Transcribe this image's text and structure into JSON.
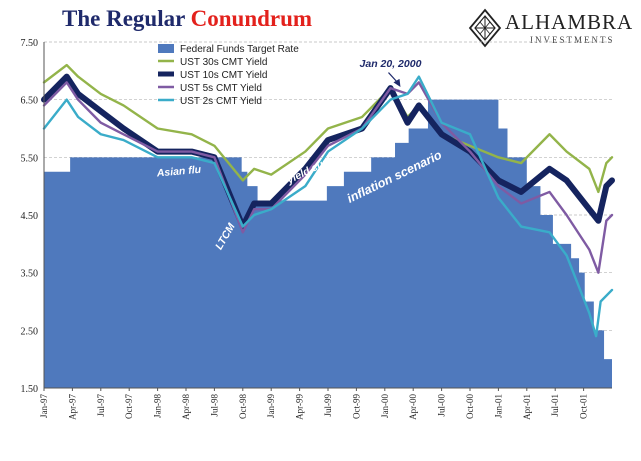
{
  "title": {
    "part1": "The Regular",
    "part2": "Conundrum"
  },
  "logo": {
    "brand": "ALHAMBRA",
    "sub": "INVESTMENTS"
  },
  "chart_data": {
    "type": "area",
    "ylim": [
      1.5,
      7.5
    ],
    "yticks": [
      "7.50",
      "6.50",
      "5.50",
      "4.50",
      "3.50",
      "2.50",
      "1.50"
    ],
    "xticks": [
      "Jan-97",
      "Apr-97",
      "Jul-97",
      "Oct-97",
      "Jan-98",
      "Apr-98",
      "Jul-98",
      "Oct-98",
      "Jan-99",
      "Apr-99",
      "Jul-99",
      "Oct-99",
      "Jan-00",
      "Apr-00",
      "Jul-00",
      "Oct-00",
      "Jan-01",
      "Apr-01",
      "Jul-01",
      "Oct-01"
    ],
    "grid": true,
    "legend": "top-left",
    "series": [
      {
        "name": "Federal Funds Target Rate",
        "kind": "step-area",
        "color": "#4f79bd",
        "x": [
          1997.0,
          1997.23,
          1998.74,
          1998.79,
          1998.88,
          1999.49,
          1999.64,
          1999.88,
          2000.09,
          2000.21,
          2000.38,
          2001.0,
          2001.08,
          2001.25,
          2001.37,
          2001.48,
          2001.64,
          2001.71,
          2001.76,
          2001.84,
          2001.93,
          2002.0
        ],
        "values": [
          5.25,
          5.5,
          5.25,
          5.0,
          4.75,
          5.0,
          5.25,
          5.5,
          5.75,
          6.0,
          6.5,
          6.0,
          5.5,
          5.0,
          4.5,
          4.0,
          3.75,
          3.5,
          3.0,
          2.5,
          2.0,
          1.75
        ]
      },
      {
        "name": "UST 30s CMT Yield",
        "color": "#93b44a",
        "x": [
          1997.0,
          1997.2,
          1997.3,
          1997.5,
          1997.7,
          1998.0,
          1998.3,
          1998.5,
          1998.75,
          1998.85,
          1999.0,
          1999.3,
          1999.5,
          1999.8,
          2000.05,
          2000.2,
          2000.3,
          2000.5,
          2000.75,
          2001.0,
          2001.2,
          2001.45,
          2001.6,
          2001.8,
          2001.88,
          2001.95,
          2002.0
        ],
        "values": [
          6.8,
          7.1,
          6.9,
          6.6,
          6.4,
          6.0,
          5.9,
          5.7,
          5.1,
          5.3,
          5.2,
          5.6,
          6.0,
          6.2,
          6.7,
          6.2,
          6.4,
          5.9,
          5.7,
          5.5,
          5.4,
          5.9,
          5.6,
          5.3,
          4.9,
          5.4,
          5.5
        ]
      },
      {
        "name": "UST 10s CMT Yield",
        "color": "#15245f",
        "x": [
          1997.0,
          1997.2,
          1997.3,
          1997.5,
          1997.7,
          1998.0,
          1998.3,
          1998.5,
          1998.75,
          1998.85,
          1999.0,
          1999.3,
          1999.5,
          1999.8,
          2000.05,
          2000.2,
          2000.3,
          2000.5,
          2000.75,
          2001.0,
          2001.2,
          2001.45,
          2001.6,
          2001.8,
          2001.88,
          2001.95,
          2002.0
        ],
        "values": [
          6.5,
          6.9,
          6.6,
          6.3,
          6.0,
          5.6,
          5.6,
          5.5,
          4.3,
          4.7,
          4.7,
          5.3,
          5.8,
          6.0,
          6.7,
          6.1,
          6.4,
          5.9,
          5.6,
          5.1,
          4.9,
          5.3,
          5.1,
          4.6,
          4.4,
          5.0,
          5.1
        ]
      },
      {
        "name": "UST 5s CMT Yield",
        "color": "#7f5ba3",
        "x": [
          1997.0,
          1997.2,
          1997.3,
          1997.5,
          1997.7,
          1998.0,
          1998.3,
          1998.5,
          1998.75,
          1998.85,
          1999.0,
          1999.3,
          1999.5,
          1999.8,
          2000.05,
          2000.2,
          2000.3,
          2000.5,
          2000.75,
          2001.0,
          2001.2,
          2001.45,
          2001.6,
          2001.8,
          2001.88,
          2001.95,
          2002.0
        ],
        "values": [
          6.4,
          6.8,
          6.5,
          6.1,
          5.9,
          5.6,
          5.6,
          5.5,
          4.2,
          4.6,
          4.6,
          5.2,
          5.7,
          6.0,
          6.7,
          6.6,
          6.8,
          6.1,
          5.6,
          5.0,
          4.7,
          4.9,
          4.5,
          3.9,
          3.5,
          4.4,
          4.5
        ]
      },
      {
        "name": "UST 2s CMT Yield",
        "color": "#3aacc9",
        "x": [
          1997.0,
          1997.2,
          1997.3,
          1997.5,
          1997.7,
          1998.0,
          1998.3,
          1998.5,
          1998.75,
          1998.85,
          1999.0,
          1999.3,
          1999.5,
          1999.8,
          2000.05,
          2000.2,
          2000.3,
          2000.5,
          2000.75,
          2001.0,
          2001.2,
          2001.45,
          2001.6,
          2001.8,
          2001.86,
          2001.9,
          2002.0
        ],
        "values": [
          6.0,
          6.5,
          6.2,
          5.9,
          5.8,
          5.5,
          5.5,
          5.4,
          4.3,
          4.5,
          4.6,
          5.0,
          5.6,
          6.0,
          6.5,
          6.6,
          6.9,
          6.1,
          5.9,
          4.8,
          4.3,
          4.2,
          3.8,
          2.8,
          2.4,
          3.0,
          3.2
        ]
      }
    ],
    "annotations": [
      {
        "text": "Jan 20, 2000",
        "x": 2000.05,
        "y": 7.07
      },
      {
        "text": "yield curve squeeze",
        "x": 1999.55,
        "y": 5.42
      },
      {
        "text": "inflation scenario",
        "x": 2000.1,
        "y": 5.1
      },
      {
        "text": "Asian flu",
        "x": 1998.19,
        "y": 5.2
      },
      {
        "text": "LTCM",
        "x": 1998.62,
        "y": 4.1
      }
    ]
  }
}
